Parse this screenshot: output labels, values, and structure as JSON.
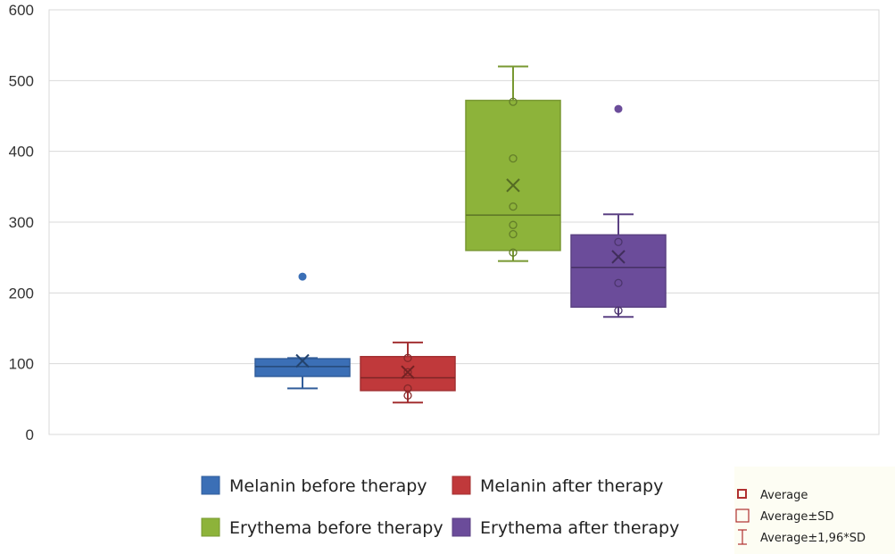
{
  "chart_data": {
    "type": "box",
    "title": "",
    "xlabel": "",
    "ylabel": "",
    "ylim": [
      0,
      600
    ],
    "yticks": [
      0,
      100,
      200,
      300,
      400,
      500,
      600
    ],
    "grid": true,
    "legend_position": "bottom",
    "series": [
      {
        "name": "Melanin before therapy",
        "color": "#3b6fb6",
        "min": 65,
        "q1": 82,
        "median": 96,
        "q3": 107,
        "max": 108,
        "mean": 104,
        "points": [],
        "outliers": [
          223
        ]
      },
      {
        "name": "Melanin after therapy",
        "color": "#c0393b",
        "min": 45,
        "q1": 62,
        "median": 80,
        "q3": 110,
        "max": 130,
        "mean": 88,
        "points": [
          55,
          65,
          88,
          108
        ],
        "outliers": []
      },
      {
        "name": "Erythema before therapy",
        "color": "#8db33a",
        "min": 245,
        "q1": 260,
        "median": 310,
        "q3": 472,
        "max": 520,
        "mean": 352,
        "points": [
          257,
          283,
          296,
          322,
          390,
          470
        ],
        "outliers": []
      },
      {
        "name": "Erythema after therapy",
        "color": "#6b4c9a",
        "min": 166,
        "q1": 180,
        "median": 236,
        "q3": 282,
        "max": 311,
        "mean": 251,
        "points": [
          175,
          214,
          272
        ],
        "outliers": [
          460
        ]
      }
    ],
    "side_legend": {
      "items": [
        "Average",
        "Average±SD",
        "Average±1,96*SD"
      ],
      "color": "#b03030"
    }
  }
}
